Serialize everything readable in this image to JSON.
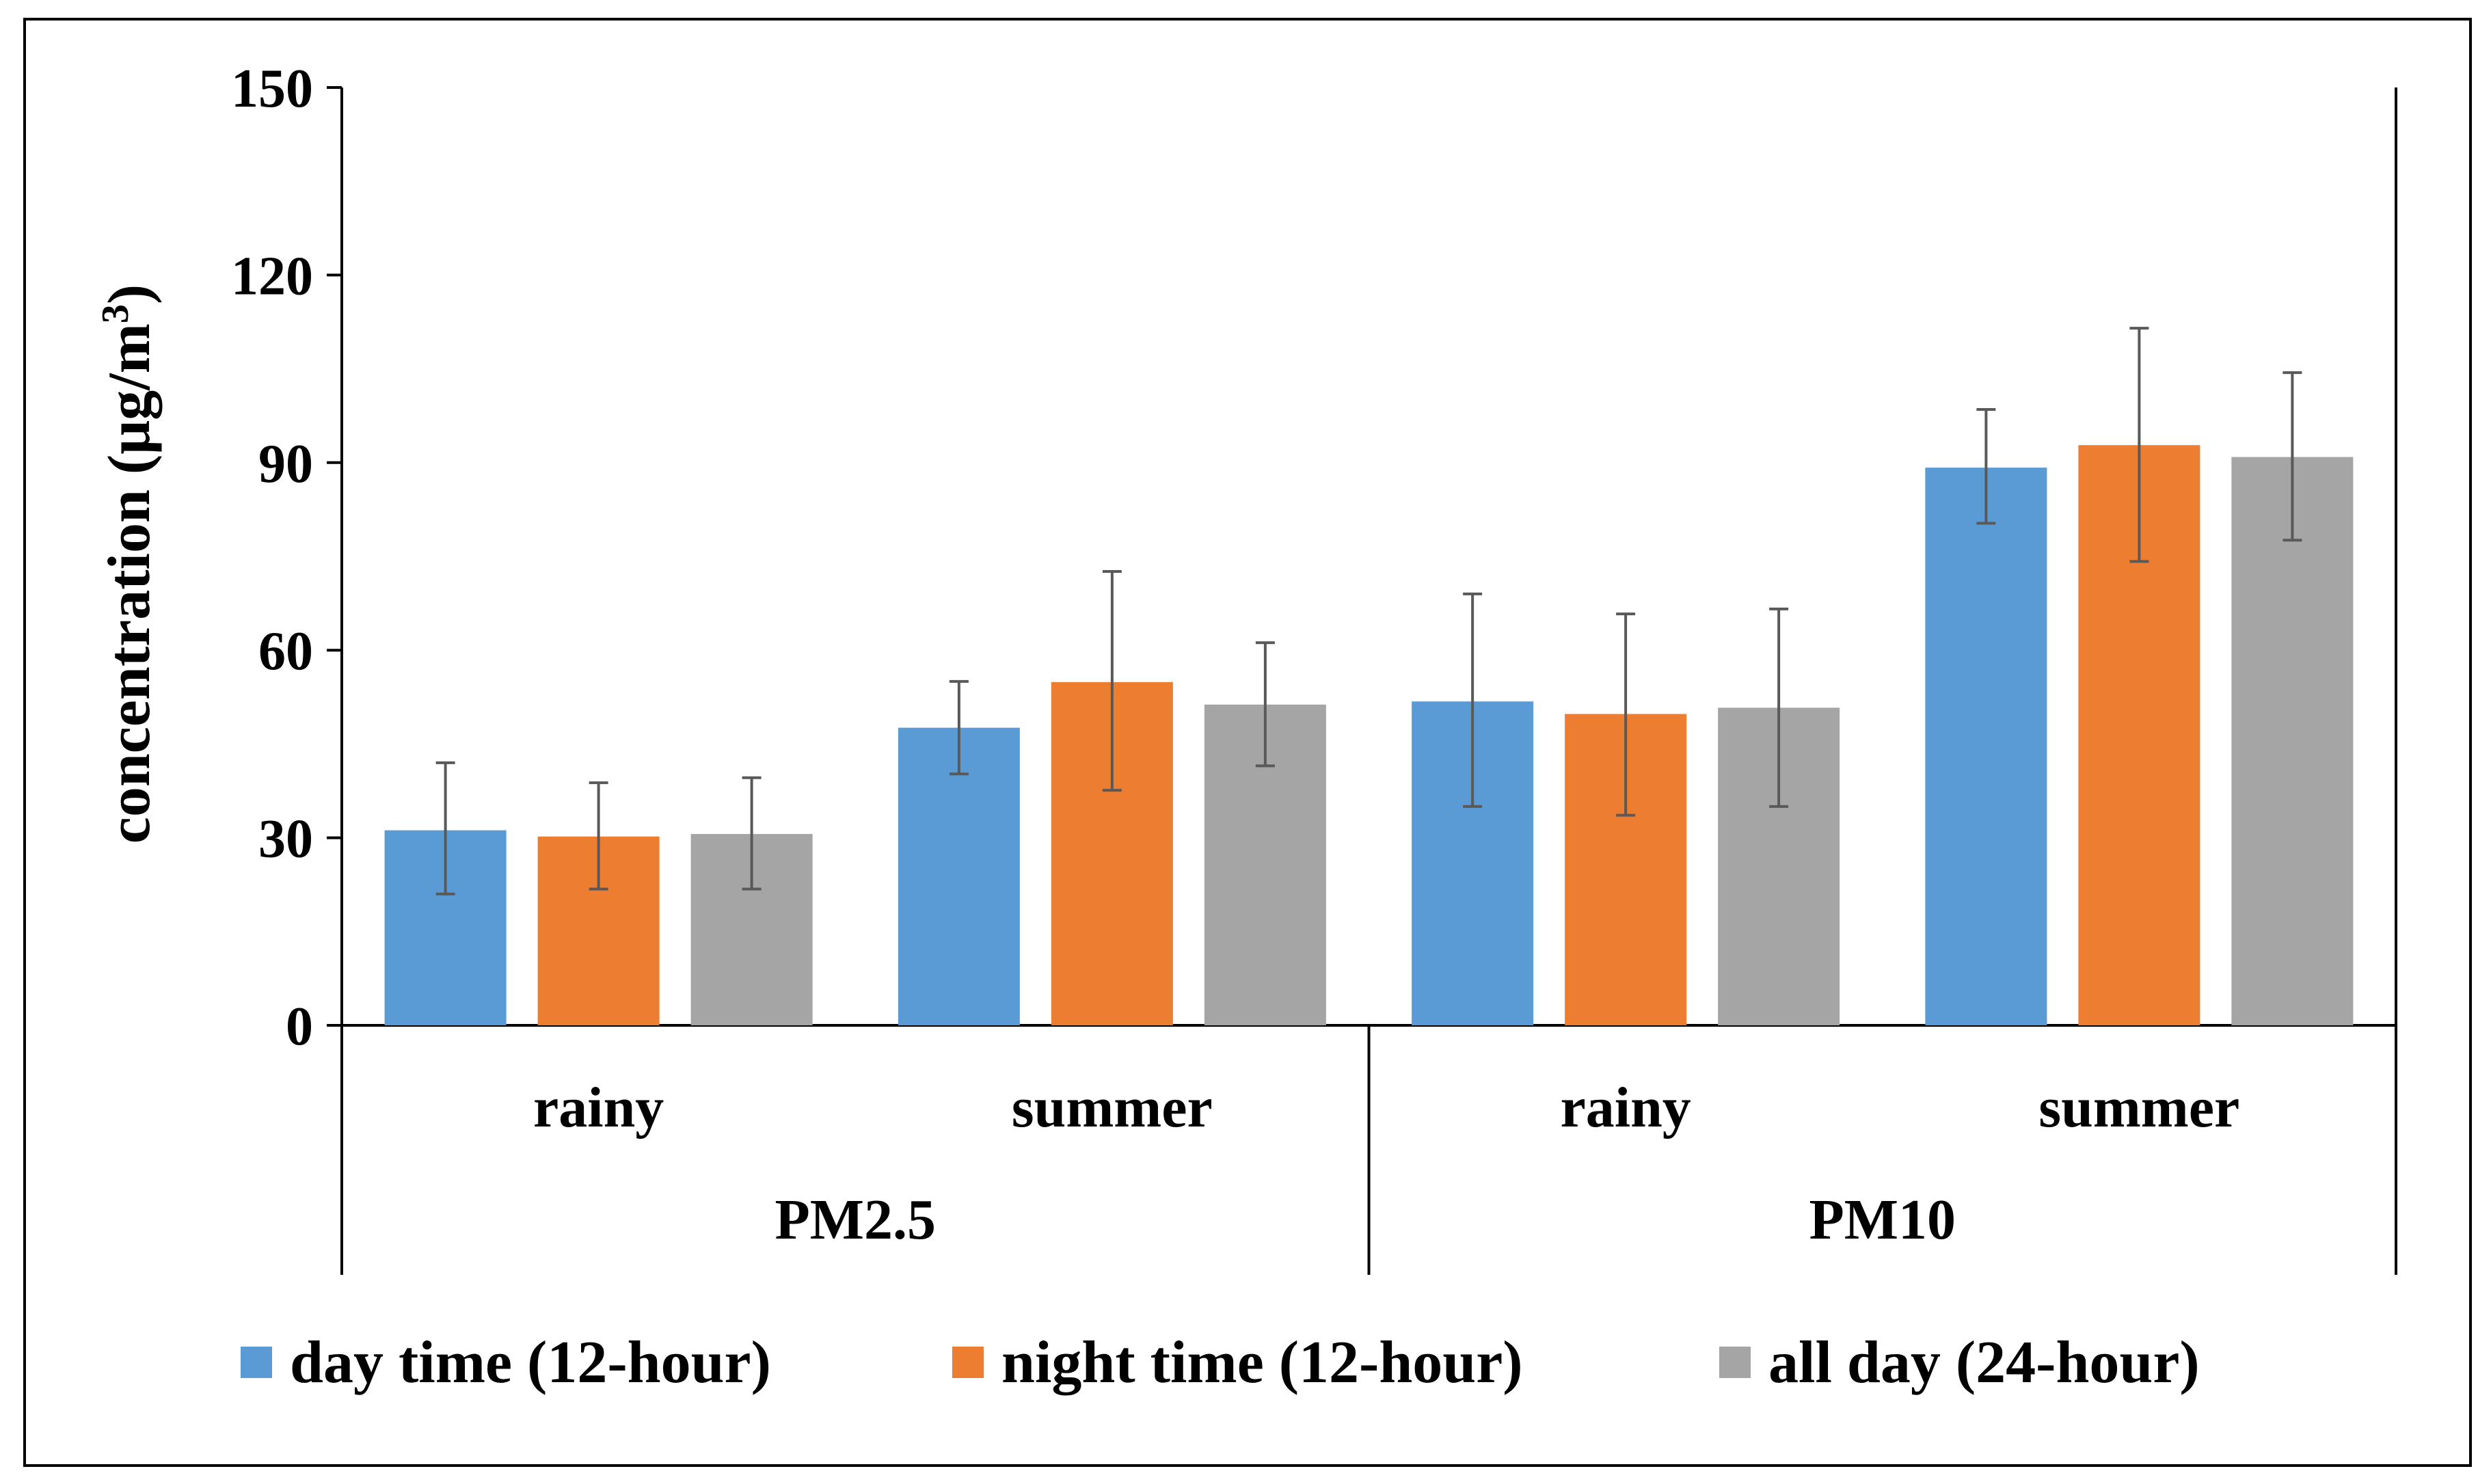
{
  "chart_data": {
    "type": "bar",
    "title": "",
    "xlabel": "",
    "ylabel": "concentration (μg/m³)",
    "ylabel_parts": {
      "main": "concentration (μg/m",
      "sup": "3",
      "end": ")"
    },
    "ylim": [
      0,
      150
    ],
    "yticks": [
      "0",
      "30",
      "60",
      "90",
      "120",
      "150"
    ],
    "grid": false,
    "legend_position": "bottom",
    "groups": [
      {
        "label": "PM2.5",
        "categories": [
          "rainy",
          "summer"
        ]
      },
      {
        "label": "PM10",
        "categories": [
          "rainy",
          "summer"
        ]
      }
    ],
    "categories": [
      "PM2.5 rainy",
      "PM2.5 summer",
      "PM10 rainy",
      "PM10 summer"
    ],
    "series": [
      {
        "name": "day time (12-hour)",
        "color": "#5B9BD5",
        "values": [
          31.2,
          47.6,
          51.8,
          89.2
        ],
        "error_low": [
          21.0,
          40.2,
          35.0,
          80.3
        ],
        "error_high": [
          42.0,
          55.0,
          69.0,
          98.5
        ]
      },
      {
        "name": "night time (12-hour)",
        "color": "#ED7D31",
        "values": [
          30.2,
          54.9,
          49.8,
          92.8
        ],
        "error_low": [
          21.8,
          37.6,
          33.6,
          74.2
        ],
        "error_high": [
          38.8,
          72.6,
          65.8,
          111.5
        ]
      },
      {
        "name": "all day (24-hour)",
        "color": "#A5A5A5",
        "values": [
          30.6,
          51.3,
          50.8,
          90.9
        ],
        "error_low": [
          21.8,
          41.5,
          35.0,
          77.6
        ],
        "error_high": [
          39.6,
          61.2,
          66.6,
          104.4
        ]
      }
    ]
  }
}
